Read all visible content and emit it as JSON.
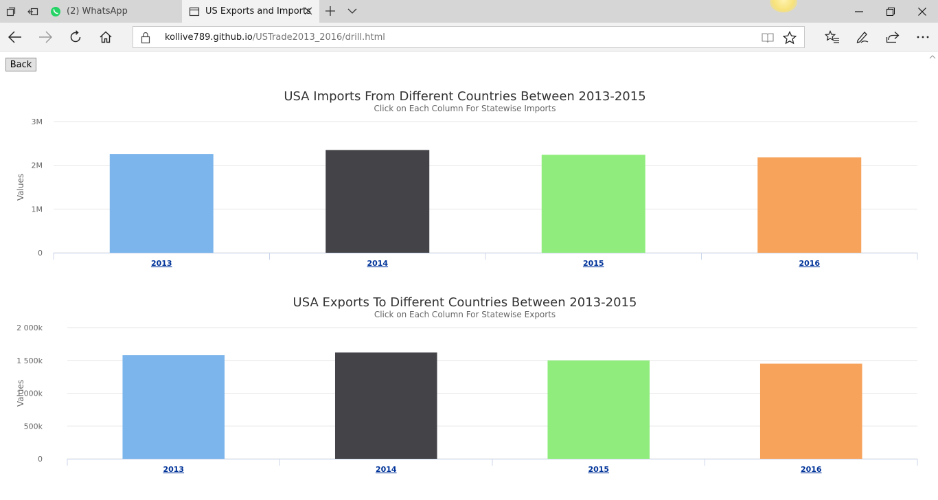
{
  "browser": {
    "tabs": [
      {
        "label": "(2) WhatsApp",
        "active": false,
        "icon": "whatsapp-icon"
      },
      {
        "label": "US Exports and Imports",
        "active": true,
        "icon": "page-icon"
      }
    ],
    "url_host": "kollive789.github.io",
    "url_path": "/USTrade2013_2016/drill.html"
  },
  "page": {
    "back_label": "Back"
  },
  "chart_data": [
    {
      "type": "bar",
      "title": "USA Imports From Different Countries Between 2013-2015",
      "subtitle": "Click on Each Column For Statewise Imports",
      "ylabel": "Values",
      "xlabel": "",
      "categories": [
        "2013",
        "2014",
        "2015",
        "2016"
      ],
      "values": [
        2260000,
        2350000,
        2240000,
        2180000
      ],
      "colors": [
        "#7cb5ec",
        "#434348",
        "#90ed7d",
        "#f7a35c"
      ],
      "ylim": [
        0,
        3000000
      ],
      "yticks": [
        0,
        1000000,
        2000000,
        3000000
      ],
      "ytick_labels": [
        "0",
        "1M",
        "2M",
        "3M"
      ],
      "grid": true,
      "legend": "none"
    },
    {
      "type": "bar",
      "title": "USA Exports To Different Countries Between 2013-2015",
      "subtitle": "Click on Each Column For Statewise Exports",
      "ylabel": "Values",
      "xlabel": "",
      "categories": [
        "2013",
        "2014",
        "2015",
        "2016"
      ],
      "values": [
        1580000,
        1620000,
        1500000,
        1450000
      ],
      "colors": [
        "#7cb5ec",
        "#434348",
        "#90ed7d",
        "#f7a35c"
      ],
      "ylim": [
        0,
        2000000
      ],
      "yticks": [
        0,
        500000,
        1000000,
        1500000,
        2000000
      ],
      "ytick_labels": [
        "0",
        "500k",
        "1 000k",
        "1 500k",
        "2 000k"
      ],
      "grid": true,
      "legend": "none"
    }
  ]
}
